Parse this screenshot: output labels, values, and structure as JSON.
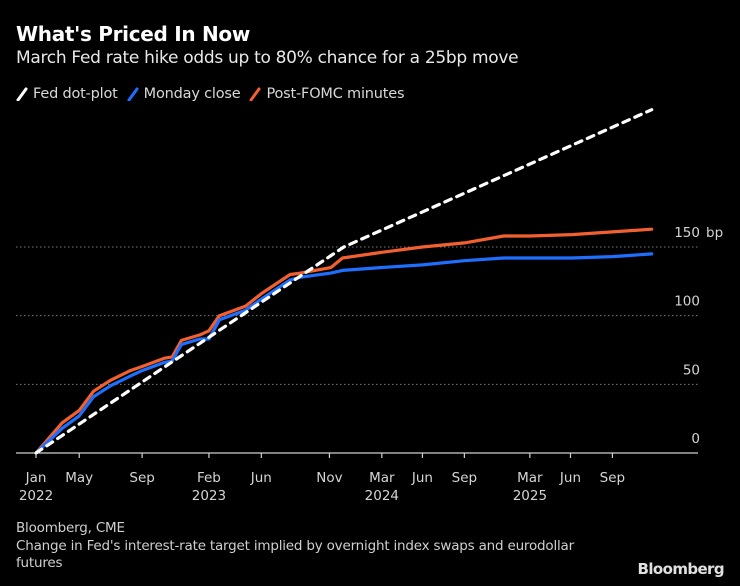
{
  "header": {
    "title": "What's Priced In Now",
    "subtitle": "March Fed rate hike odds up to 80% chance for a 25bp move"
  },
  "legend": [
    {
      "label": "Fed dot-plot",
      "color": "#ffffff",
      "style": "dashed"
    },
    {
      "label": "Monday close",
      "color": "#1f6fff",
      "style": "solid"
    },
    {
      "label": "Post-FOMC minutes",
      "color": "#f2602f",
      "style": "solid"
    }
  ],
  "footer": {
    "source": "Bloomberg, CME",
    "note": "Change in Fed's interest-rate target implied by overnight index swaps and eurodollar futures",
    "brand": "Bloomberg"
  },
  "chart_data": {
    "type": "line",
    "title": "What's Priced In Now",
    "subtitle": "March Fed rate hike odds up to 80% chance for a 25bp move",
    "xlabel": "",
    "ylabel": "bp",
    "x_units": "months since Jan 2022",
    "xlim": [
      -1.5,
      50
    ],
    "ylim": [
      0,
      260
    ],
    "grid": true,
    "y_axis_side": "right",
    "legend_position": "top-left",
    "x_ticks": [
      {
        "month": 0,
        "label": "Jan",
        "year": "2022"
      },
      {
        "month": 3.3,
        "label": "May",
        "year": ""
      },
      {
        "month": 8.1,
        "label": "Sep",
        "year": ""
      },
      {
        "month": 13.2,
        "label": "Feb",
        "year": "2023"
      },
      {
        "month": 17.2,
        "label": "Jun",
        "year": ""
      },
      {
        "month": 22.4,
        "label": "Nov",
        "year": ""
      },
      {
        "month": 26.4,
        "label": "Mar",
        "year": "2024"
      },
      {
        "month": 29.5,
        "label": "Jun",
        "year": ""
      },
      {
        "month": 32.7,
        "label": "Sep",
        "year": ""
      },
      {
        "month": 37.7,
        "label": "Mar",
        "year": "2025"
      },
      {
        "month": 40.8,
        "label": "Jun",
        "year": ""
      },
      {
        "month": 44,
        "label": "Sep",
        "year": ""
      }
    ],
    "y_ticks": [
      {
        "value": 0,
        "label": "0"
      },
      {
        "value": 50,
        "label": "50"
      },
      {
        "value": 100,
        "label": "100"
      },
      {
        "value": 150,
        "label": "150 bp"
      }
    ],
    "series": [
      {
        "name": "Fed dot-plot",
        "color": "#ffffff",
        "dashed": true,
        "points": [
          [
            0,
            0
          ],
          [
            23.5,
            150
          ],
          [
            47,
            250
          ]
        ]
      },
      {
        "name": "Monday close",
        "color": "#1f6fff",
        "dashed": false,
        "points": [
          [
            0,
            0
          ],
          [
            2,
            18
          ],
          [
            3.3,
            27
          ],
          [
            4.4,
            41
          ],
          [
            5.7,
            49
          ],
          [
            7.2,
            56
          ],
          [
            8.1,
            60
          ],
          [
            9.8,
            66
          ],
          [
            10.4,
            67
          ],
          [
            11.1,
            79
          ],
          [
            12.5,
            83
          ],
          [
            13.2,
            83
          ],
          [
            14,
            97
          ],
          [
            16,
            104
          ],
          [
            17.2,
            112
          ],
          [
            19.4,
            126
          ],
          [
            20.2,
            128
          ],
          [
            22.5,
            131
          ],
          [
            23.4,
            133
          ],
          [
            26.3,
            135
          ],
          [
            29.5,
            137
          ],
          [
            32.7,
            140
          ],
          [
            35.7,
            142
          ],
          [
            37.7,
            142
          ],
          [
            40.9,
            142
          ],
          [
            44,
            143
          ],
          [
            47,
            145
          ]
        ]
      },
      {
        "name": "Post-FOMC minutes",
        "color": "#f2602f",
        "dashed": false,
        "points": [
          [
            0,
            0
          ],
          [
            2,
            22
          ],
          [
            3.3,
            31
          ],
          [
            4.4,
            45
          ],
          [
            5.7,
            53
          ],
          [
            7.2,
            60
          ],
          [
            8.1,
            63
          ],
          [
            9.8,
            69
          ],
          [
            10.4,
            70
          ],
          [
            11.1,
            82
          ],
          [
            12.5,
            86
          ],
          [
            13.2,
            89
          ],
          [
            14,
            100
          ],
          [
            16,
            107
          ],
          [
            17.2,
            116
          ],
          [
            19.4,
            130
          ],
          [
            20.2,
            131
          ],
          [
            22.5,
            135
          ],
          [
            23.4,
            142
          ],
          [
            26.3,
            146
          ],
          [
            29.5,
            150
          ],
          [
            32.7,
            153
          ],
          [
            35.7,
            158
          ],
          [
            37.7,
            158
          ],
          [
            40.9,
            159
          ],
          [
            44,
            161
          ],
          [
            47,
            163
          ]
        ]
      }
    ]
  }
}
